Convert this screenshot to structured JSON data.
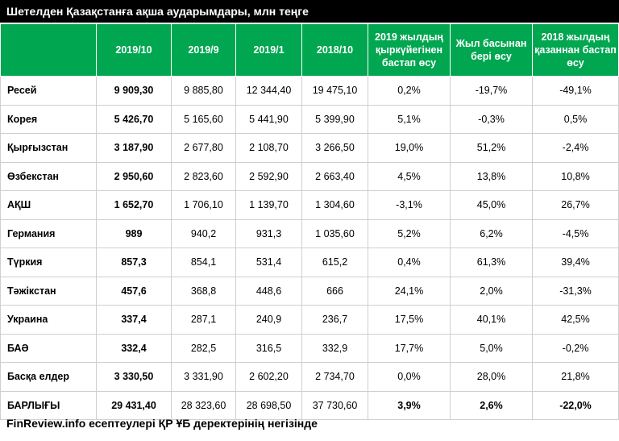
{
  "title": "Шетелден Қазақстанға ақша аударымдары, млн теңге",
  "headers": [
    "",
    "2019/10",
    "2019/9",
    "2019/1",
    "2018/10",
    "2019 жылдың қыркүйегінен бастап өсу",
    "Жыл басынан бері өсу",
    "2018 жылдың қазаннан бастап өсу"
  ],
  "rows": [
    [
      "Ресей",
      "9 909,30",
      "9 885,80",
      "12 344,40",
      "19 475,10",
      "0,2%",
      "-19,7%",
      "-49,1%"
    ],
    [
      "Корея",
      "5 426,70",
      "5 165,60",
      "5 441,90",
      "5 399,90",
      "5,1%",
      "-0,3%",
      "0,5%"
    ],
    [
      "Қырғызстан",
      "3 187,90",
      "2 677,80",
      "2 108,70",
      "3 266,50",
      "19,0%",
      "51,2%",
      "-2,4%"
    ],
    [
      "Өзбекстан",
      "2 950,60",
      "2 823,60",
      "2 592,90",
      "2 663,40",
      "4,5%",
      "13,8%",
      "10,8%"
    ],
    [
      "АҚШ",
      "1 652,70",
      "1 706,10",
      "1 139,70",
      "1 304,60",
      "-3,1%",
      "45,0%",
      "26,7%"
    ],
    [
      "Германия",
      "989",
      "940,2",
      "931,3",
      "1 035,60",
      "5,2%",
      "6,2%",
      "-4,5%"
    ],
    [
      "Түркия",
      "857,3",
      "854,1",
      "531,4",
      "615,2",
      "0,4%",
      "61,3%",
      "39,4%"
    ],
    [
      "Тәжікстан",
      "457,6",
      "368,8",
      "448,6",
      "666",
      "24,1%",
      "2,0%",
      "-31,3%"
    ],
    [
      "Украина",
      "337,4",
      "287,1",
      "240,9",
      "236,7",
      "17,5%",
      "40,1%",
      "42,5%"
    ],
    [
      "БАӘ",
      "332,4",
      "282,5",
      "316,5",
      "332,9",
      "17,7%",
      "5,0%",
      "-0,2%"
    ],
    [
      "Басқа елдер",
      "3 330,50",
      "3 331,90",
      "2 602,20",
      "2 734,70",
      "0,0%",
      "28,0%",
      "21,8%"
    ],
    [
      "БАРЛЫҒЫ",
      "29 431,40",
      "28 323,60",
      "28 698,50",
      "37 730,60",
      "3,9%",
      "2,6%",
      "-22,0%"
    ]
  ],
  "footer": "FinReview.info есептеулері ҚР ҰБ деректерінің негізінде",
  "colors": {
    "header_bg": "#00a650",
    "title_bg": "#000000"
  }
}
